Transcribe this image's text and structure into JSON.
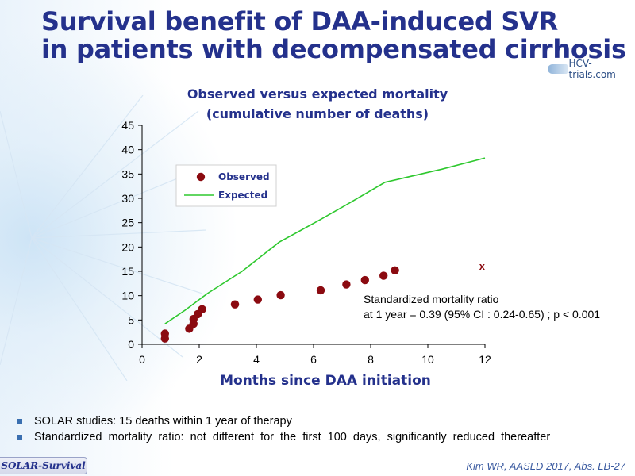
{
  "slide": {
    "title_line1": "Survival benefit of DAA-induced SVR",
    "title_line2": "in patients with decompensated cirrhosis",
    "logo_text": "HCV-trials.com",
    "tag": "SOLAR-Survival",
    "citation": "Kim WR, AASLD 2017, Abs. LB-27",
    "bullets": [
      "SOLAR studies: 15 deaths within 1 year of therapy",
      "Standardized  mortality  ratio:  not  different  for  the  first  100  days,  significantly  reduced  thereafter"
    ],
    "annotation_line1": "Standardized mortality ratio",
    "annotation_line2": "at 1 year = 0.39 (95% CI : 0.24-0.65) ; p < 0.001"
  },
  "colors": {
    "title": "#24318c",
    "observed": "#8b0a10",
    "expected": "#2ec82e",
    "axis": "#000000"
  },
  "chart_data": {
    "type": "scatter",
    "title_line1": "Observed versus expected mortality",
    "title_line2": "(cumulative number of deaths)",
    "xlabel": "Months since DAA initiation",
    "ylabel": "",
    "xlim": [
      0,
      12
    ],
    "ylim": [
      0,
      45
    ],
    "xticks": [
      0,
      2,
      4,
      6,
      8,
      10,
      12
    ],
    "yticks": [
      0,
      5,
      10,
      15,
      20,
      25,
      30,
      35,
      40,
      45
    ],
    "grid": false,
    "legend_position": "upper-left",
    "series": [
      {
        "name": "Observed",
        "kind": "scatter",
        "points": [
          [
            0.8,
            1.2
          ],
          [
            0.8,
            2.2
          ],
          [
            1.65,
            3.2
          ],
          [
            1.8,
            4.2
          ],
          [
            1.8,
            5.2
          ],
          [
            1.95,
            6.2
          ],
          [
            2.1,
            7.2
          ],
          [
            3.25,
            8.2
          ],
          [
            4.05,
            9.2
          ],
          [
            4.85,
            10.1
          ],
          [
            6.25,
            11.1
          ],
          [
            7.15,
            12.3
          ],
          [
            7.8,
            13.2
          ],
          [
            8.45,
            14.1
          ],
          [
            8.85,
            15.2
          ]
        ]
      },
      {
        "name": "Expected",
        "kind": "line",
        "points": [
          [
            0.8,
            4.2
          ],
          [
            1.5,
            7.0
          ],
          [
            2.3,
            10.5
          ],
          [
            3.5,
            15.0
          ],
          [
            4.8,
            21.0
          ],
          [
            6.2,
            25.5
          ],
          [
            7.1,
            28.5
          ],
          [
            8.5,
            33.3
          ],
          [
            10.5,
            36.0
          ],
          [
            12.0,
            38.3
          ]
        ]
      }
    ],
    "annotations": [
      {
        "text": "x",
        "x": 11.9,
        "y": 15.3
      }
    ]
  }
}
